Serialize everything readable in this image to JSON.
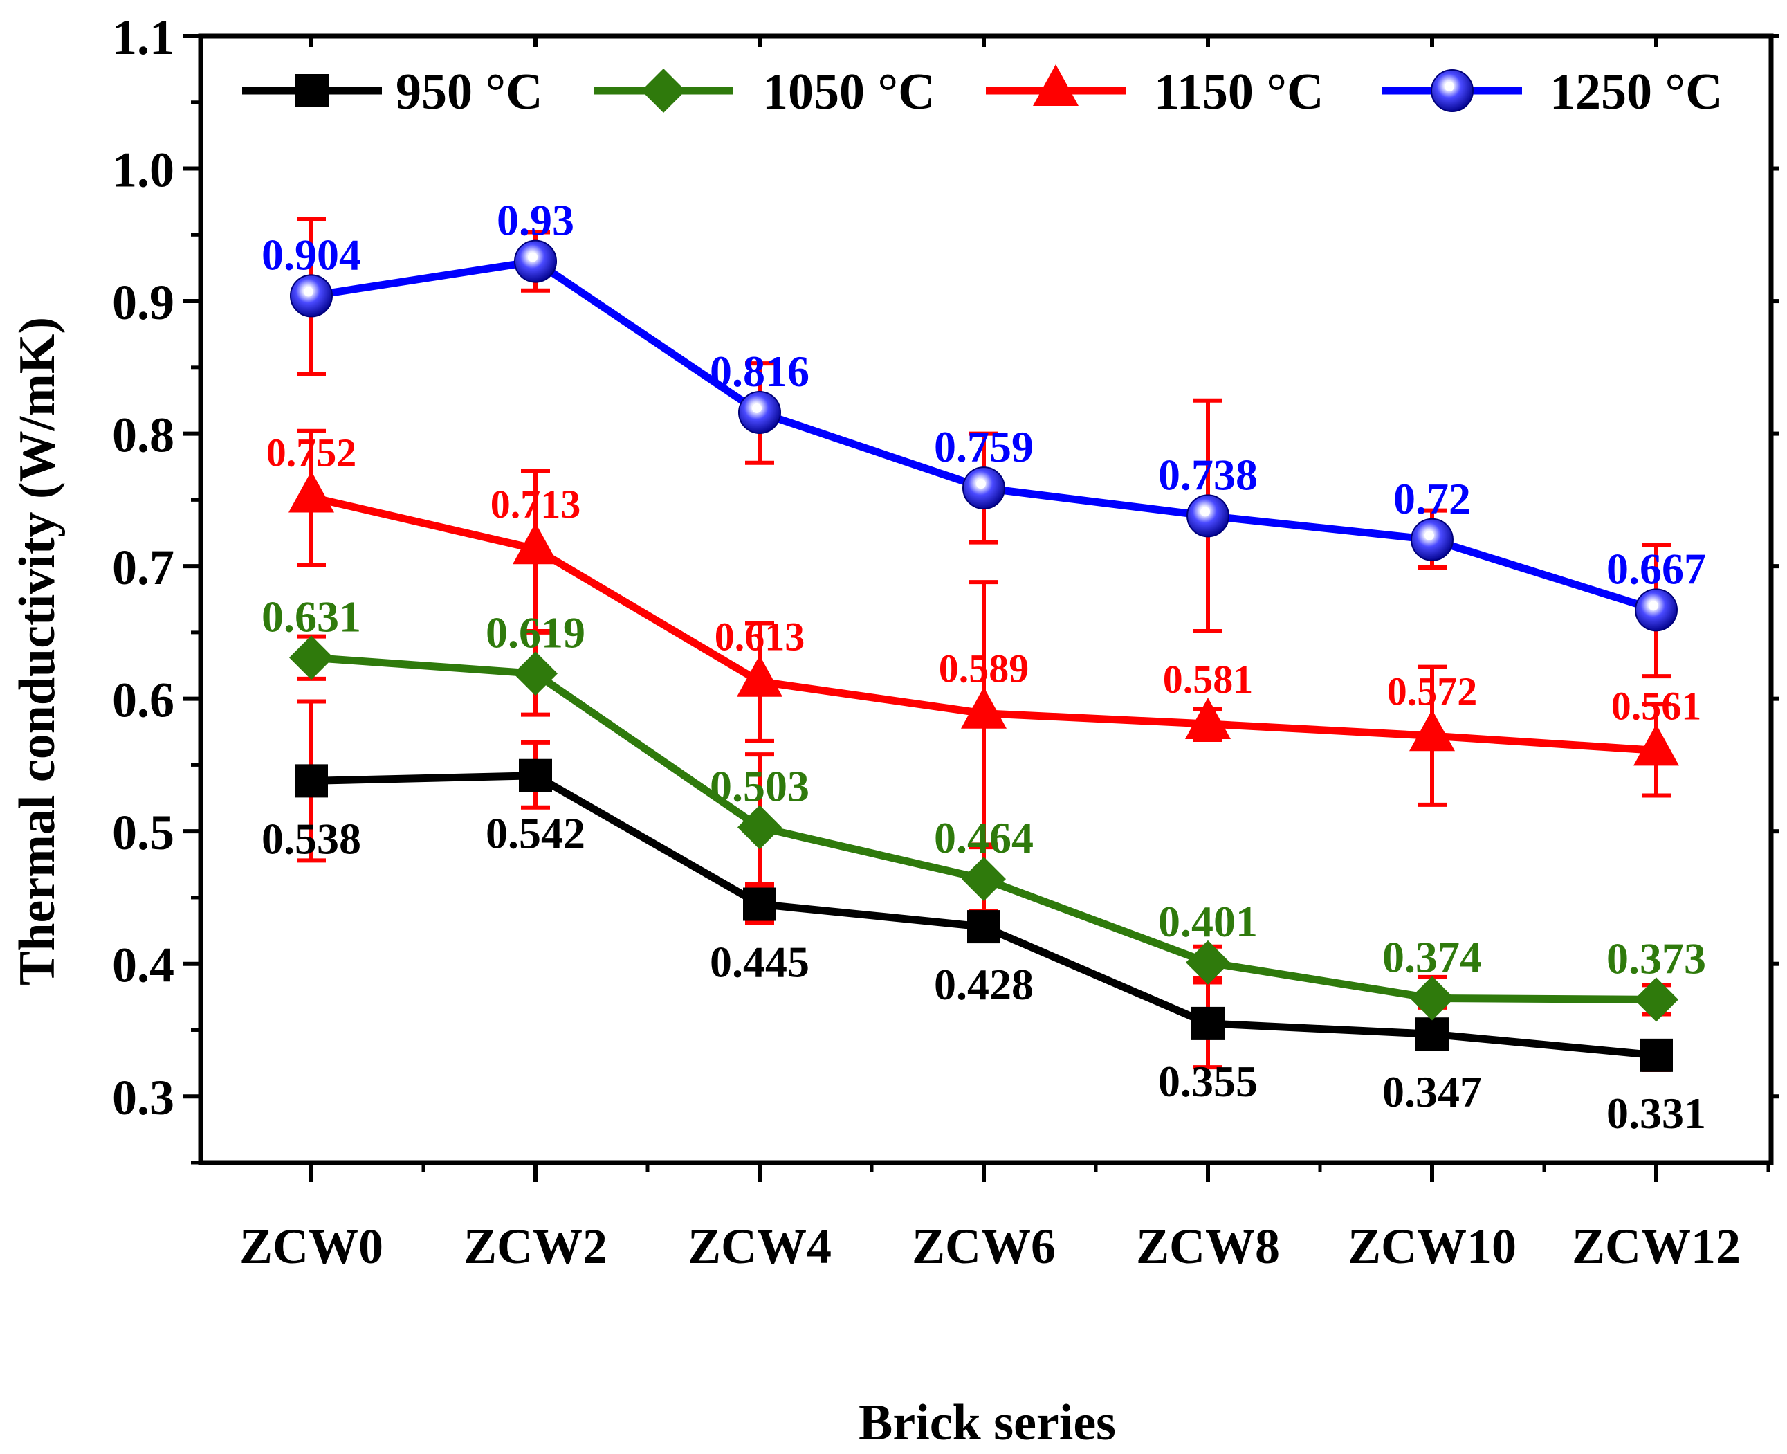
{
  "chart_data": {
    "type": "line",
    "xlabel": "Brick series",
    "ylabel": "Thermal conductivity (W/mK)",
    "categories": [
      "ZCW0",
      "ZCW2",
      "ZCW4",
      "ZCW6",
      "ZCW8",
      "ZCW10",
      "ZCW12"
    ],
    "ylim": [
      0.25,
      1.1
    ],
    "yticks": [
      0.3,
      0.4,
      0.5,
      0.6,
      0.7,
      0.8,
      0.9,
      1.0,
      1.1
    ],
    "ytick_labels": [
      "0.3",
      "0.4",
      "0.5",
      "0.6",
      "0.7",
      "0.8",
      "0.9",
      "1.0",
      "1.1"
    ],
    "grid": false,
    "legend_position": "top",
    "series": [
      {
        "name": "950 °C",
        "color": "#000000",
        "marker": "square",
        "values": [
          0.538,
          0.542,
          0.445,
          0.428,
          0.355,
          0.347,
          0.331
        ],
        "labels": [
          "0.538",
          "0.542",
          "0.445",
          "0.428",
          "0.355",
          "0.347",
          "0.331"
        ],
        "label_position": "below"
      },
      {
        "name": "1050 °C",
        "color": "#2f7a0c",
        "marker": "diamond",
        "values": [
          0.631,
          0.619,
          0.503,
          0.464,
          0.401,
          0.374,
          0.373
        ],
        "labels": [
          "0.631",
          "0.619",
          "0.503",
          "0.464",
          "0.401",
          "0.374",
          "0.373"
        ],
        "label_position": "above"
      },
      {
        "name": "1150 °C",
        "color": "#ff0000",
        "marker": "triangle",
        "values": [
          0.752,
          0.713,
          0.613,
          0.589,
          0.581,
          0.572,
          0.561
        ],
        "labels": [
          "0.752",
          "0.713",
          "0.613",
          "0.589",
          "0.581",
          "0.572",
          "0.561"
        ],
        "label_position": "above"
      },
      {
        "name": "1250 °C",
        "color": "#0000ff",
        "marker": "sphere",
        "values": [
          0.904,
          0.93,
          0.816,
          0.759,
          0.738,
          0.72,
          0.667
        ],
        "labels": [
          "0.904",
          "0.93",
          "0.816",
          "0.759",
          "0.738",
          "0.72",
          "0.667"
        ],
        "label_position": "above"
      }
    ],
    "error_bars": {
      "color": "#ff0000",
      "bars": [
        {
          "x": "ZCW0",
          "low": 0.845,
          "high": 0.962
        },
        {
          "x": "ZCW2",
          "low": 0.908,
          "high": 0.952
        },
        {
          "x": "ZCW4",
          "low": 0.778,
          "high": 0.853
        },
        {
          "x": "ZCW6",
          "low": 0.718,
          "high": 0.8
        },
        {
          "x": "ZCW8",
          "low": 0.651,
          "high": 0.825
        },
        {
          "x": "ZCW10",
          "low": 0.699,
          "high": 0.742
        },
        {
          "x": "ZCW12",
          "low": 0.617,
          "high": 0.716
        },
        {
          "x": "ZCW0",
          "low": 0.701,
          "high": 0.802
        },
        {
          "x": "ZCW2",
          "low": 0.651,
          "high": 0.772
        },
        {
          "x": "ZCW4",
          "low": 0.568,
          "high": 0.657
        },
        {
          "x": "ZCW6",
          "low": 0.49,
          "high": 0.688
        },
        {
          "x": "ZCW8",
          "low": 0.569,
          "high": 0.592
        },
        {
          "x": "ZCW10",
          "low": 0.52,
          "high": 0.624
        },
        {
          "x": "ZCW12",
          "low": 0.527,
          "high": 0.596
        },
        {
          "x": "ZCW0",
          "low": 0.615,
          "high": 0.647
        },
        {
          "x": "ZCW2",
          "low": 0.588,
          "high": 0.65
        },
        {
          "x": "ZCW4",
          "low": 0.459,
          "high": 0.558
        },
        {
          "x": "ZCW6",
          "low": 0.44,
          "high": 0.488
        },
        {
          "x": "ZCW8",
          "low": 0.389,
          "high": 0.413
        },
        {
          "x": "ZCW10",
          "low": 0.367,
          "high": 0.39
        },
        {
          "x": "ZCW12",
          "low": 0.362,
          "high": 0.384
        },
        {
          "x": "ZCW0",
          "low": 0.478,
          "high": 0.598
        },
        {
          "x": "ZCW2",
          "low": 0.518,
          "high": 0.567
        },
        {
          "x": "ZCW4",
          "low": 0.431,
          "high": 0.46
        },
        {
          "x": "ZCW6",
          "low": 0.418,
          "high": 0.44
        },
        {
          "x": "ZCW8",
          "low": 0.322,
          "high": 0.386
        },
        {
          "x": "ZCW10",
          "low": 0.339,
          "high": 0.355
        },
        {
          "x": "ZCW12",
          "low": 0.32,
          "high": 0.341
        }
      ]
    }
  }
}
